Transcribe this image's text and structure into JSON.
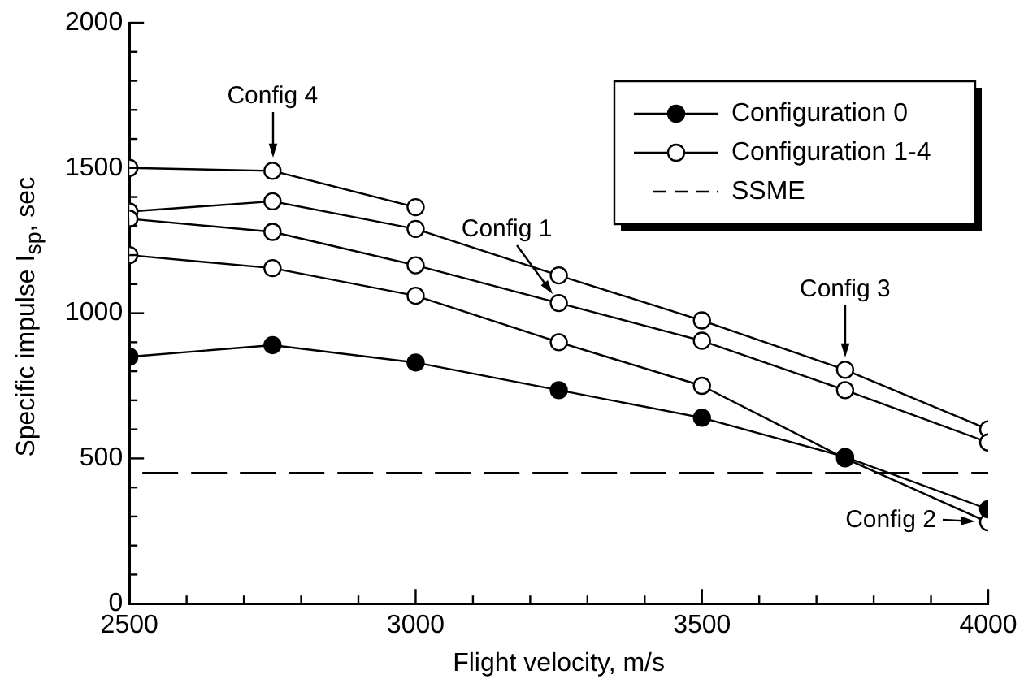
{
  "chart_data": {
    "type": "line",
    "xlabel": "Flight velocity, m/s",
    "ylabel": "Specific impulse I$_{sp}$, sec",
    "x": [
      2500,
      2750,
      3000,
      3250,
      3500,
      3750,
      4000
    ],
    "series": [
      {
        "name": "Configuration 0",
        "color": "#000000",
        "marker": "circle",
        "values": [
          850,
          890,
          830,
          735,
          640,
          505,
          325
        ]
      },
      {
        "name": "Configuration 1-4",
        "color": "#000000",
        "marker": "circle",
        "values": [
          1325,
          1280,
          1165,
          1035,
          905,
          735,
          555
        ]
      },
      {
        "color": "#000000",
        "marker": "circle",
        "values": [
          1200,
          1155,
          1060,
          900,
          750,
          500,
          280
        ]
      },
      {
        "color": "#000000",
        "marker": "circle",
        "values": [
          1350,
          1385,
          1290,
          1130,
          975,
          805,
          600
        ]
      },
      {
        "color": "#000000",
        "marker": "circle",
        "values": [
          1500,
          1490,
          1365,
          null,
          null,
          null,
          null
        ]
      }
    ],
    "xlim": [
      2500,
      4000
    ],
    "xticks": [
      2500,
      {
        "value": 2600,
        "label": null
      },
      {
        "value": 2700,
        "label": null
      },
      {
        "value": 2800,
        "label": null
      },
      {
        "value": 2900,
        "label": null
      },
      3000,
      {
        "value": 3100,
        "label": null
      },
      {
        "value": 3200,
        "label": null
      },
      {
        "value": 3300,
        "label": null
      },
      {
        "value": 3400,
        "label": null
      },
      3500,
      {
        "value": 3600,
        "label": null
      },
      {
        "value": 3700,
        "label": null
      },
      {
        "value": 3800,
        "label": null
      },
      {
        "value": 3900,
        "label": null
      },
      4000
    ],
    "ylim": [
      0,
      2000
    ],
    "yticks": [
      0,
      {
        "value": 100,
        "label": null
      },
      {
        "value": 200,
        "label": null
      },
      {
        "value": 300,
        "label": null
      },
      {
        "value": 400,
        "label": null
      },
      500,
      {
        "value": 600,
        "label": null
      },
      {
        "value": 700,
        "label": null
      },
      {
        "value": 800,
        "label": null
      },
      {
        "value": 900,
        "label": null
      },
      1000,
      {
        "value": 1100,
        "label": null
      },
      {
        "value": 1200,
        "label": null
      },
      {
        "value": 1300,
        "label": null
      },
      {
        "value": 1400,
        "label": null
      },
      1500,
      {
        "value": 1600,
        "label": null
      },
      {
        "value": 1700,
        "label": null
      },
      {
        "value": 1800,
        "label": null
      },
      {
        "value": 1900,
        "label": null
      },
      2000
    ],
    "ref_lines": [
      {
        "axis": "y",
        "value": 450,
        "label": "SSME",
        "color": "#000000",
        "line_style": "dashed"
      }
    ],
    "annotations": [
      {
        "text": "Config 4",
        "x": 2750,
        "y": 1490
      },
      {
        "text": "Config 1",
        "x": 3250,
        "y": 1035
      },
      {
        "text": "Config 3",
        "x": 3750,
        "y": 805
      },
      {
        "text": "Config 2",
        "x": 4000,
        "y": 280
      }
    ],
    "grid": false,
    "legend": "top right",
    "line_style": "solid"
  }
}
